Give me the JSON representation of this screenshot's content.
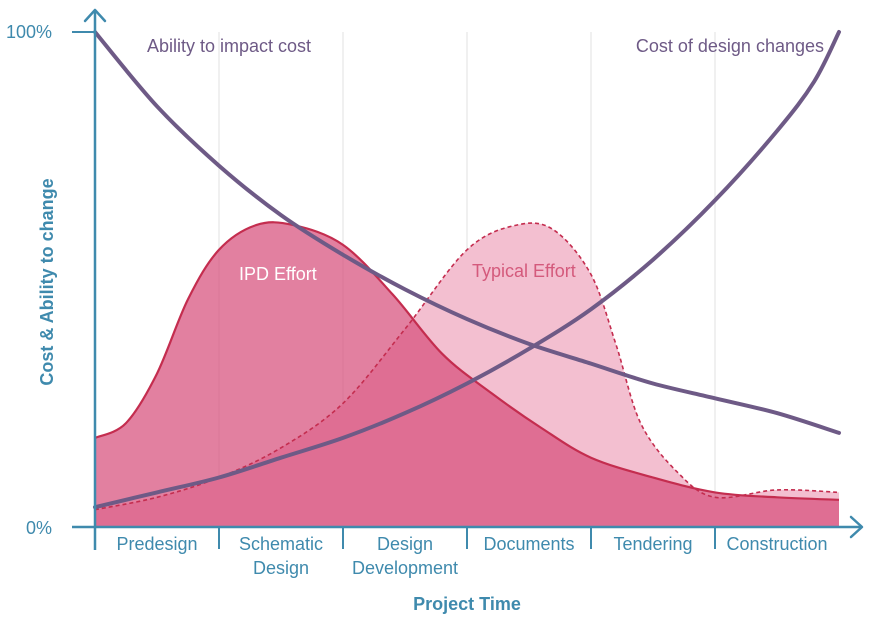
{
  "chart_data": {
    "type": "area",
    "title": "",
    "xlabel": "Project Time",
    "ylabel": "Cost & Ability to change",
    "xlim": [
      0,
      6
    ],
    "ylim": [
      0,
      100
    ],
    "yticks": [
      "0%",
      "100%"
    ],
    "grid": true,
    "categories": [
      "Predesign",
      "Schematic Design",
      "Design Development",
      "Documents",
      "Tendering",
      "Construction"
    ],
    "series": [
      {
        "name": "Ability to impact cost",
        "kind": "line",
        "label": "Ability to impact cost",
        "x": [
          0,
          0.5,
          1,
          1.5,
          2,
          2.5,
          3,
          3.5,
          4,
          4.5,
          5,
          5.5,
          6
        ],
        "values": [
          100,
          85,
          73,
          63,
          55,
          48,
          42,
          37,
          33,
          29,
          26,
          23,
          19
        ]
      },
      {
        "name": "Cost of design changes",
        "kind": "line",
        "label": "Cost of design changes",
        "x": [
          0,
          0.5,
          1,
          1.5,
          2,
          2.5,
          3,
          3.5,
          4,
          4.5,
          5,
          5.5,
          5.8,
          6
        ],
        "values": [
          4,
          7,
          10,
          14,
          18,
          23,
          29,
          36,
          44,
          54,
          66,
          80,
          90,
          100
        ]
      },
      {
        "name": "IPD Effort",
        "kind": "area",
        "label": "IPD Effort",
        "x": [
          0,
          0.25,
          0.5,
          0.75,
          1,
          1.3,
          1.6,
          2,
          2.4,
          2.8,
          3.2,
          3.6,
          4,
          4.5,
          5,
          5.5,
          6
        ],
        "values": [
          18,
          21,
          31,
          46,
          56,
          61,
          61,
          57,
          47,
          35,
          27,
          20,
          14,
          10,
          7,
          6,
          5.5
        ]
      },
      {
        "name": "Typical Effort",
        "kind": "area",
        "label": "Typical Effort",
        "x": [
          0,
          0.5,
          1,
          1.5,
          2,
          2.5,
          3,
          3.4,
          3.7,
          4,
          4.2,
          4.4,
          4.7,
          5,
          5.5,
          6
        ],
        "values": [
          3.5,
          6,
          10,
          16,
          25,
          40,
          56,
          61,
          60,
          51,
          37,
          21,
          11,
          6,
          7.5,
          7
        ]
      }
    ],
    "colors": {
      "axis": "#3f8aad",
      "grid": "#e5e5e5",
      "line": "#6e5a86",
      "ipd_fill": "#d74f7b",
      "ipd_stroke": "#c42d4f",
      "typical_fill": "#f3bfd0",
      "typical_stroke": "#c42d4f",
      "ipd_label": "#ffffff",
      "typical_label": "#d45a7c",
      "line_label": "#6e5a86"
    }
  }
}
